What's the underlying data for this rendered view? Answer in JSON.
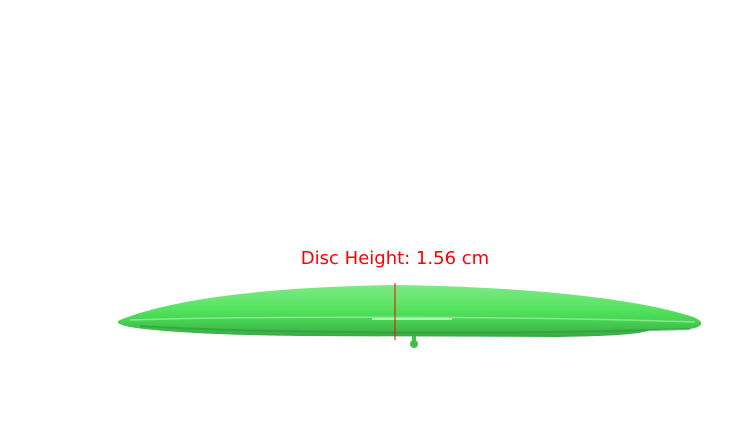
{
  "annotation": {
    "label": "Disc Height: 1.56 cm",
    "color": "#ff0000"
  },
  "object": {
    "name": "disc",
    "color": "#4fe05a"
  }
}
